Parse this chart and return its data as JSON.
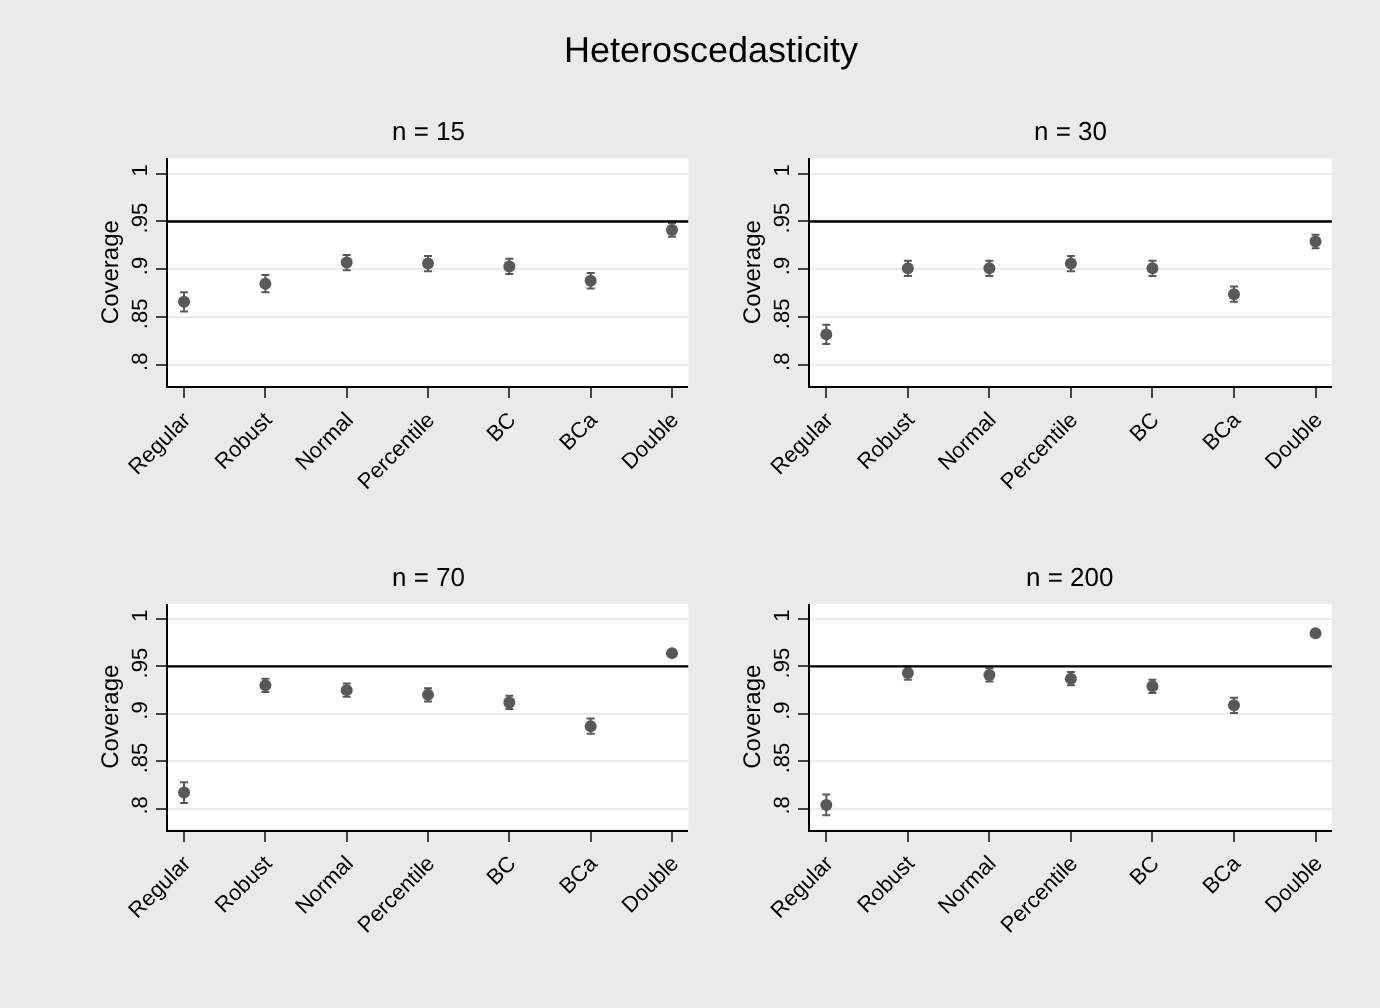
{
  "chart_data": [
    {
      "type": "scatter",
      "title": "n = 15",
      "ylabel": "Coverage",
      "annotations": [
        "Heteroscedasticity"
      ],
      "categories": [
        "Regular",
        "Robust",
        "Normal",
        "Percentile",
        "BC",
        "BCa",
        "Double"
      ],
      "series": [
        {
          "color": "#595959",
          "values": [
            0.866,
            0.885,
            0.907,
            0.906,
            0.903,
            0.888,
            0.941
          ],
          "errors": [
            0.01,
            0.009,
            0.008,
            0.008,
            0.008,
            0.008,
            0.007
          ]
        }
      ],
      "ylim": [
        0.778,
        1.016
      ],
      "yticks": [
        {
          "value": 0.8,
          "label": ".8"
        },
        {
          "value": 0.85,
          "label": ".85"
        },
        {
          "value": 0.9,
          "label": ".9"
        },
        {
          "value": 0.95,
          "label": ".95"
        },
        1
      ],
      "grid": "y",
      "marker": "circle",
      "ref_lines": [
        {
          "axis": "y",
          "value": 0.95,
          "color": "#000000"
        }
      ]
    },
    {
      "type": "scatter",
      "title": "n = 30",
      "ylabel": "Coverage",
      "categories": [
        "Regular",
        "Robust",
        "Normal",
        "Percentile",
        "BC",
        "BCa",
        "Double"
      ],
      "series": [
        {
          "color": "#595959",
          "values": [
            0.832,
            0.901,
            0.901,
            0.906,
            0.901,
            0.874,
            0.929
          ],
          "errors": [
            0.01,
            0.008,
            0.008,
            0.008,
            0.008,
            0.008,
            0.007
          ]
        }
      ],
      "ylim": [
        0.778,
        1.016
      ],
      "yticks": [
        {
          "value": 0.8,
          "label": ".8"
        },
        {
          "value": 0.85,
          "label": ".85"
        },
        {
          "value": 0.9,
          "label": ".9"
        },
        {
          "value": 0.95,
          "label": ".95"
        },
        1
      ],
      "grid": "y",
      "marker": "circle",
      "ref_lines": [
        {
          "axis": "y",
          "value": 0.95,
          "color": "#000000"
        }
      ]
    },
    {
      "type": "scatter",
      "title": "n = 70",
      "ylabel": "Coverage",
      "categories": [
        "Regular",
        "Robust",
        "Normal",
        "Percentile",
        "BC",
        "BCa",
        "Double"
      ],
      "series": [
        {
          "color": "#595959",
          "values": [
            0.817,
            0.93,
            0.925,
            0.92,
            0.912,
            0.887,
            0.964
          ],
          "errors": [
            0.011,
            0.007,
            0.007,
            0.007,
            0.007,
            0.008,
            null
          ]
        }
      ],
      "ylim": [
        0.778,
        1.016
      ],
      "yticks": [
        {
          "value": 0.8,
          "label": ".8"
        },
        {
          "value": 0.85,
          "label": ".85"
        },
        {
          "value": 0.9,
          "label": ".9"
        },
        {
          "value": 0.95,
          "label": ".95"
        },
        1
      ],
      "grid": "y",
      "marker": "circle",
      "ref_lines": [
        {
          "axis": "y",
          "value": 0.95,
          "color": "#000000"
        }
      ]
    },
    {
      "type": "scatter",
      "title": "n = 200",
      "ylabel": "Coverage",
      "categories": [
        "Regular",
        "Robust",
        "Normal",
        "Percentile",
        "BC",
        "BCa",
        "Double"
      ],
      "series": [
        {
          "color": "#595959",
          "values": [
            0.804,
            0.943,
            0.941,
            0.937,
            0.929,
            0.909,
            0.985
          ],
          "errors": [
            0.011,
            0.007,
            0.007,
            0.007,
            0.007,
            0.008,
            null
          ]
        }
      ],
      "ylim": [
        0.778,
        1.016
      ],
      "yticks": [
        {
          "value": 0.8,
          "label": ".8"
        },
        {
          "value": 0.85,
          "label": ".85"
        },
        {
          "value": 0.9,
          "label": ".9"
        },
        {
          "value": 0.95,
          "label": ".95"
        },
        1
      ],
      "grid": "y",
      "marker": "circle",
      "ref_lines": [
        {
          "axis": "y",
          "value": 0.95,
          "color": "#000000"
        }
      ]
    }
  ]
}
